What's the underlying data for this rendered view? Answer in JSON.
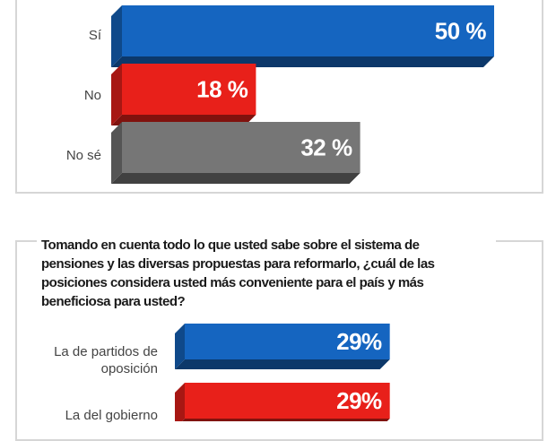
{
  "chart_data": [
    {
      "type": "bar",
      "orientation": "horizontal",
      "categories": [
        "Sí",
        "No",
        "No sé"
      ],
      "values": [
        50,
        18,
        32
      ],
      "value_labels": [
        "50 %",
        "18 %",
        "32 %"
      ],
      "colors": [
        "#1565c0",
        "#e8201a",
        "#767676"
      ],
      "xlim": [
        0,
        50
      ],
      "grid": false,
      "legend": "none"
    },
    {
      "type": "bar",
      "orientation": "horizontal",
      "title": "Tomando en cuenta todo lo que usted sabe sobre el sistema de pensiones y las diversas propuestas para reformarlo, ¿cuál de las posiciones considera usted más conveniente para el país y más beneficiosa para usted?",
      "categories": [
        "La de partidos de oposición",
        "La del gobierno"
      ],
      "values": [
        29,
        29
      ],
      "value_labels": [
        "29%",
        "29%"
      ],
      "colors": [
        "#1565c0",
        "#e8201a"
      ],
      "grid": false,
      "legend": "none"
    }
  ]
}
